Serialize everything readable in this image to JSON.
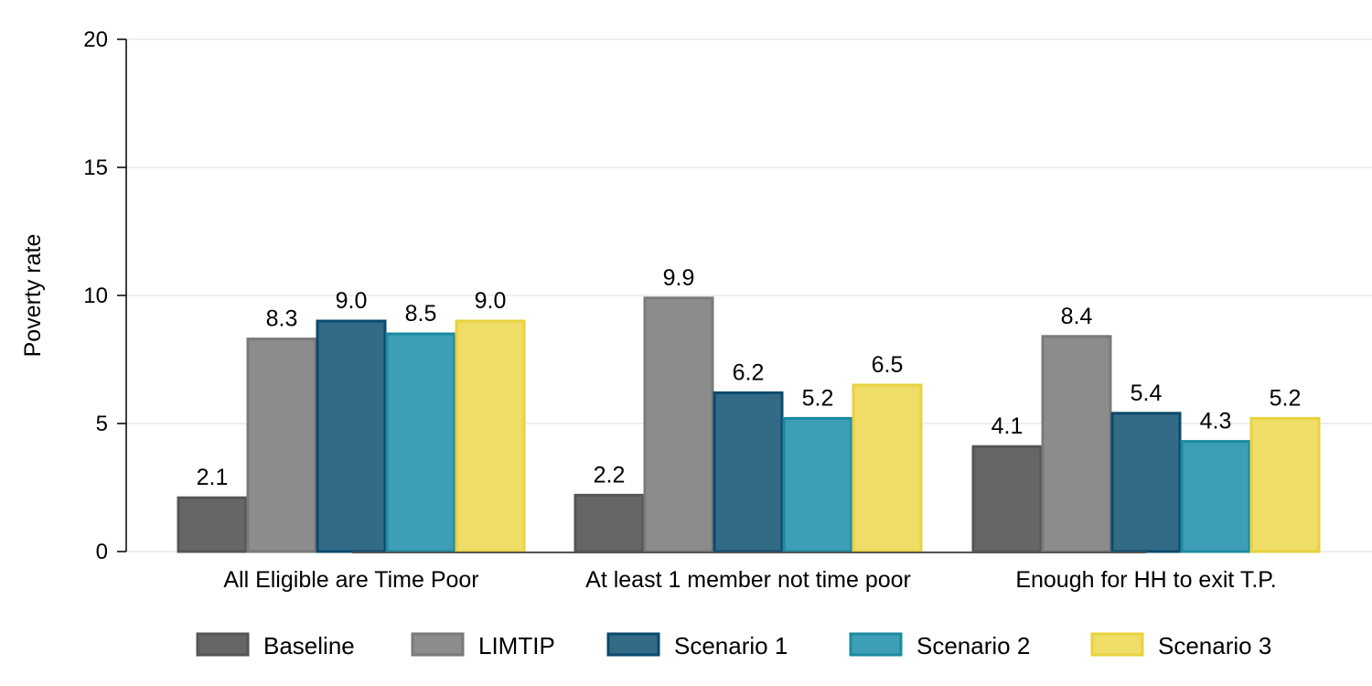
{
  "chart_data": {
    "type": "bar",
    "ylabel": "Poverty rate",
    "ylim": [
      0,
      20
    ],
    "yticks": [
      0,
      5,
      10,
      15,
      20
    ],
    "grid": true,
    "legend_position": "bottom",
    "categories": [
      "All Eligible are Time Poor",
      "At least 1 member not time poor",
      "Enough for HH to exit T.P."
    ],
    "series": [
      {
        "name": "Baseline",
        "values": [
          2.1,
          2.2,
          4.1
        ],
        "labels": [
          "2.1",
          "2.2",
          "4.1"
        ],
        "fill": "#666666",
        "stroke": "#555555"
      },
      {
        "name": "LIMTIP",
        "values": [
          8.3,
          9.9,
          8.4
        ],
        "labels": [
          "8.3",
          "9.9",
          "8.4"
        ],
        "fill": "#8c8c8c",
        "stroke": "#7a7a7a"
      },
      {
        "name": "Scenario 1",
        "values": [
          9.0,
          6.2,
          5.4
        ],
        "labels": [
          "9.0",
          "6.2",
          "5.4"
        ],
        "fill": "#336b87",
        "stroke": "#0b4a6b"
      },
      {
        "name": "Scenario 2",
        "values": [
          8.5,
          5.2,
          4.3
        ],
        "labels": [
          "8.5",
          "5.2",
          "4.3"
        ],
        "fill": "#3d9eb5",
        "stroke": "#1b8aa0"
      },
      {
        "name": "Scenario 3",
        "values": [
          9.0,
          6.5,
          5.2
        ],
        "labels": [
          "9.0",
          "6.5",
          "5.2"
        ],
        "fill": "#efdd68",
        "stroke": "#e8d23e"
      }
    ]
  }
}
